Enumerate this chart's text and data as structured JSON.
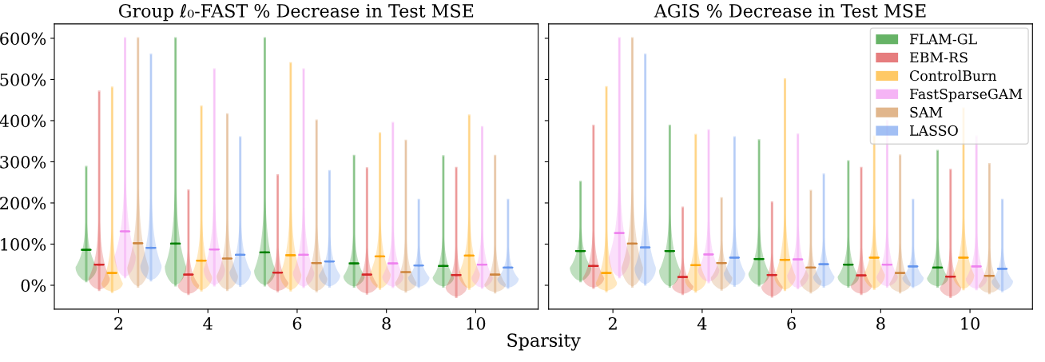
{
  "chart_data": [
    {
      "type": "box",
      "title": "Group ℓ₀-FAST % Decrease in Test MSE",
      "xlabel": "Sparsity",
      "categories": [
        "2",
        "4",
        "6",
        "8",
        "10"
      ],
      "ylim": [
        -58,
        635
      ],
      "yticks": [
        {
          "value": 0,
          "label": "0%"
        },
        {
          "value": 100,
          "label": "100%"
        },
        {
          "value": 200,
          "label": "200%"
        },
        {
          "value": 300,
          "label": "300%"
        },
        {
          "value": 400,
          "label": "400%"
        },
        {
          "value": 500,
          "label": "500%"
        },
        {
          "value": 600,
          "label": "600%"
        }
      ],
      "grid": false,
      "legend": false,
      "series": [
        {
          "color": "#008000",
          "boxes": [
            {
              "low": 10,
              "q1": 86,
              "median": 86,
              "q3": 86,
              "high": 287
            },
            {
              "low": 0,
              "q1": 101,
              "median": 101,
              "q3": 101,
              "high": 600
            },
            {
              "low": 0,
              "q1": 80,
              "median": 80,
              "q3": 80,
              "high": 600
            },
            {
              "low": -3,
              "q1": 53,
              "median": 53,
              "q3": 53,
              "high": 314
            },
            {
              "low": -3,
              "q1": 47,
              "median": 47,
              "q3": 47,
              "high": 313
            }
          ]
        },
        {
          "color": "#d62728",
          "boxes": [
            {
              "low": -11,
              "q1": 50,
              "median": 50,
              "q3": 50,
              "high": 470
            },
            {
              "low": -21,
              "q1": 26,
              "median": 26,
              "q3": 26,
              "high": 230
            },
            {
              "low": -14,
              "q1": 31,
              "median": 31,
              "q3": 31,
              "high": 267
            },
            {
              "low": -20,
              "q1": 26,
              "median": 26,
              "q3": 26,
              "high": 284
            },
            {
              "low": -28,
              "q1": 25,
              "median": 25,
              "q3": 25,
              "high": 285
            }
          ]
        },
        {
          "color": "#ffa500",
          "boxes": [
            {
              "low": -16,
              "q1": 30,
              "median": 30,
              "q3": 30,
              "high": 480
            },
            {
              "low": -12,
              "q1": 60,
              "median": 60,
              "q3": 60,
              "high": 434
            },
            {
              "low": -12,
              "q1": 73,
              "median": 73,
              "q3": 73,
              "high": 539
            },
            {
              "low": -8,
              "q1": 70,
              "median": 70,
              "q3": 70,
              "high": 369
            },
            {
              "low": -8,
              "q1": 72,
              "median": 72,
              "q3": 72,
              "high": 412
            }
          ]
        },
        {
          "color": "#ee82ee",
          "boxes": [
            {
              "low": 20,
              "q1": 131,
              "median": 131,
              "q3": 131,
              "high": 600
            },
            {
              "low": 0,
              "q1": 87,
              "median": 87,
              "q3": 87,
              "high": 524
            },
            {
              "low": -4,
              "q1": 74,
              "median": 74,
              "q3": 74,
              "high": 524
            },
            {
              "low": -4,
              "q1": 53,
              "median": 53,
              "q3": 53,
              "high": 394
            },
            {
              "low": -6,
              "q1": 50,
              "median": 50,
              "q3": 50,
              "high": 384
            }
          ]
        },
        {
          "color": "#cd853f",
          "boxes": [
            {
              "low": -3,
              "q1": 102,
              "median": 102,
              "q3": 102,
              "high": 600
            },
            {
              "low": -11,
              "q1": 65,
              "median": 65,
              "q3": 65,
              "high": 415
            },
            {
              "low": -14,
              "q1": 54,
              "median": 54,
              "q3": 54,
              "high": 400
            },
            {
              "low": -15,
              "q1": 32,
              "median": 32,
              "q3": 32,
              "high": 351
            },
            {
              "low": -17,
              "q1": 26,
              "median": 26,
              "q3": 26,
              "high": 314
            }
          ]
        },
        {
          "color": "#6495ed",
          "boxes": [
            {
              "low": 12,
              "q1": 91,
              "median": 91,
              "q3": 91,
              "high": 560
            },
            {
              "low": -1,
              "q1": 74,
              "median": 74,
              "q3": 74,
              "high": 359
            },
            {
              "low": -3,
              "q1": 58,
              "median": 58,
              "q3": 58,
              "high": 277
            },
            {
              "low": -4,
              "q1": 48,
              "median": 48,
              "q3": 48,
              "high": 207
            },
            {
              "low": -6,
              "q1": 43,
              "median": 43,
              "q3": 43,
              "high": 207
            }
          ]
        }
      ]
    },
    {
      "type": "box",
      "title": "AGIS % Decrease in Test MSE",
      "categories": [
        "2",
        "4",
        "6",
        "8",
        "10"
      ],
      "ylim": [
        -58,
        635
      ],
      "yticks": [
        {
          "value": 0,
          "label": null
        },
        {
          "value": 100,
          "label": null
        },
        {
          "value": 200,
          "label": null
        },
        {
          "value": 300,
          "label": null
        },
        {
          "value": 400,
          "label": null
        },
        {
          "value": 500,
          "label": null
        },
        {
          "value": 600,
          "label": null
        }
      ],
      "tick_labels": "x",
      "grid": false,
      "legend": "top right",
      "series": [
        {
          "name": "FLAM-GL",
          "color": "#008000",
          "boxes": [
            {
              "low": 10,
              "q1": 83,
              "median": 83,
              "q3": 83,
              "high": 251
            },
            {
              "low": -3,
              "q1": 83,
              "median": 83,
              "q3": 83,
              "high": 387
            },
            {
              "low": 0,
              "q1": 64,
              "median": 64,
              "q3": 64,
              "high": 352
            },
            {
              "low": -3,
              "q1": 50,
              "median": 50,
              "q3": 50,
              "high": 301
            },
            {
              "low": -3,
              "q1": 43,
              "median": 43,
              "q3": 43,
              "high": 326
            }
          ]
        },
        {
          "name": "EBM-RS",
          "color": "#d62728",
          "boxes": [
            {
              "low": -6,
              "q1": 47,
              "median": 47,
              "q3": 47,
              "high": 387
            },
            {
              "low": -21,
              "q1": 20,
              "median": 20,
              "q3": 20,
              "high": 188
            },
            {
              "low": -27,
              "q1": 25,
              "median": 25,
              "q3": 25,
              "high": 201
            },
            {
              "low": -21,
              "q1": 24,
              "median": 24,
              "q3": 24,
              "high": 285
            },
            {
              "low": -28,
              "q1": 21,
              "median": 21,
              "q3": 21,
              "high": 280
            }
          ]
        },
        {
          "name": "ControlBurn",
          "color": "#ffa500",
          "boxes": [
            {
              "low": -14,
              "q1": 30,
              "median": 30,
              "q3": 30,
              "high": 481
            },
            {
              "low": -15,
              "q1": 49,
              "median": 49,
              "q3": 49,
              "high": 365
            },
            {
              "low": -11,
              "q1": 62,
              "median": 62,
              "q3": 62,
              "high": 500
            },
            {
              "low": -8,
              "q1": 67,
              "median": 67,
              "q3": 67,
              "high": 361
            },
            {
              "low": -9,
              "q1": 67,
              "median": 67,
              "q3": 67,
              "high": 429
            }
          ]
        },
        {
          "name": "FastSparseGAM",
          "color": "#ee82ee",
          "boxes": [
            {
              "low": 20,
              "q1": 127,
              "median": 127,
              "q3": 127,
              "high": 600
            },
            {
              "low": 8,
              "q1": 75,
              "median": 75,
              "q3": 75,
              "high": 376
            },
            {
              "low": -7,
              "q1": 63,
              "median": 63,
              "q3": 63,
              "high": 366
            },
            {
              "low": -3,
              "q1": 50,
              "median": 50,
              "q3": 50,
              "high": 399
            },
            {
              "low": -9,
              "q1": 46,
              "median": 46,
              "q3": 46,
              "high": 361
            }
          ]
        },
        {
          "name": "SAM",
          "color": "#cd853f",
          "boxes": [
            {
              "low": -3,
              "q1": 101,
              "median": 101,
              "q3": 101,
              "high": 600
            },
            {
              "low": -10,
              "q1": 54,
              "median": 54,
              "q3": 54,
              "high": 211
            },
            {
              "low": -17,
              "q1": 43,
              "median": 43,
              "q3": 43,
              "high": 229
            },
            {
              "low": -17,
              "q1": 30,
              "median": 30,
              "q3": 30,
              "high": 315
            },
            {
              "low": -19,
              "q1": 23,
              "median": 23,
              "q3": 23,
              "high": 294
            }
          ]
        },
        {
          "name": "LASSO",
          "color": "#6495ed",
          "boxes": [
            {
              "low": 2,
              "q1": 92,
              "median": 92,
              "q3": 92,
              "high": 560
            },
            {
              "low": -1,
              "q1": 67,
              "median": 67,
              "q3": 67,
              "high": 359
            },
            {
              "low": -3,
              "q1": 51,
              "median": 51,
              "q3": 51,
              "high": 269
            },
            {
              "low": -4,
              "q1": 46,
              "median": 46,
              "q3": 46,
              "high": 207
            },
            {
              "low": -14,
              "q1": 40,
              "median": 40,
              "q3": 40,
              "high": 207
            }
          ]
        }
      ]
    }
  ]
}
